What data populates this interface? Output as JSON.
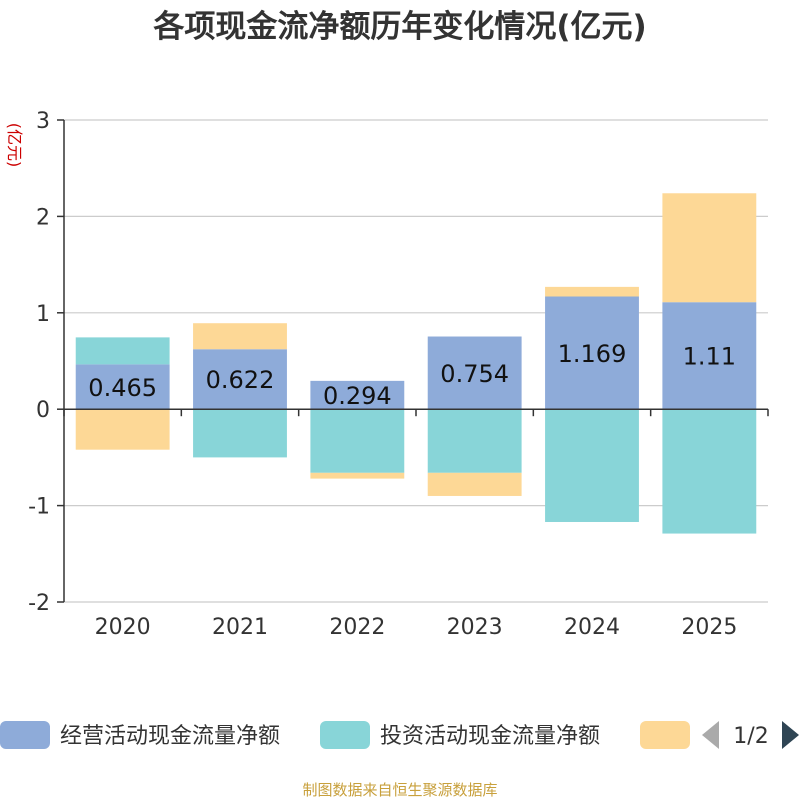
{
  "chart_data": {
    "type": "bar",
    "stacked": true,
    "title": "各项现金流净额历年变化情况(亿元)",
    "ylabel": "(亿元)",
    "xlabel": "",
    "ylim": [
      -2,
      3
    ],
    "yticks": [
      3,
      2,
      1,
      0,
      -1,
      -2
    ],
    "ytick_labels": [
      "3",
      "2",
      "1",
      "0",
      "-1",
      "-2"
    ],
    "categories": [
      "2020",
      "2021",
      "2022",
      "2023",
      "2024",
      "2025"
    ],
    "series": [
      {
        "name": "经营活动现金流量净额",
        "color": "#8eabd9",
        "values": [
          0.465,
          0.622,
          0.294,
          0.754,
          1.169,
          1.11
        ],
        "data_labels": [
          "0.465",
          "0.622",
          "0.294",
          "0.754",
          "1.169",
          "1.11"
        ]
      },
      {
        "name": "投资活动现金流量净额",
        "color": "#88d5d8",
        "values": [
          0.28,
          -0.5,
          -0.66,
          -0.66,
          -1.17,
          -1.29
        ]
      },
      {
        "name": "",
        "color": "#fdd896",
        "values": [
          -0.42,
          0.27,
          -0.06,
          -0.24,
          0.1,
          1.13
        ]
      }
    ],
    "grid": true,
    "legend_position": "bottom"
  },
  "legend": {
    "page_indicator": "1/2"
  },
  "footer": {
    "source": "制图数据来自恒生聚源数据库"
  }
}
